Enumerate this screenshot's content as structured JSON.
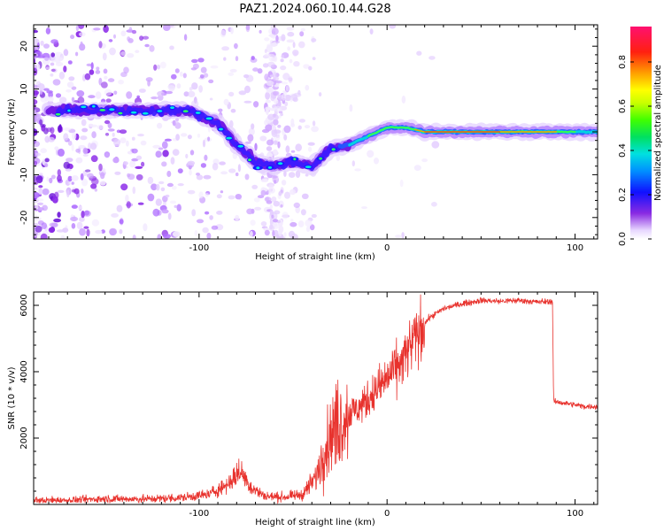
{
  "title": "PAZ1.2024.060.10.44.G28",
  "colors": {
    "snr_line": "#e8322d",
    "frame": "#000000"
  },
  "chart_data": [
    {
      "type": "heatmap",
      "xlabel": "Height of straight line (km)",
      "ylabel": "Frequency (Hz)",
      "xlim": [
        -188,
        112
      ],
      "ylim": [
        -25,
        25
      ],
      "xticks": [
        -100,
        0,
        100
      ],
      "yticks": [
        -20,
        -10,
        0,
        10,
        20
      ],
      "colorbar": {
        "label": "Normalized spectral amplitude",
        "range": [
          0,
          0.96
        ],
        "ticks": [
          0.0,
          0.2,
          0.4,
          0.6,
          0.8
        ],
        "colormap": "rainbow (white → violet → blue → cyan → green → yellow → red → pink)"
      },
      "ridge": [
        {
          "x": -175,
          "y": 5
        },
        {
          "x": -150,
          "y": 5
        },
        {
          "x": -120,
          "y": 5
        },
        {
          "x": -105,
          "y": 5
        },
        {
          "x": -90,
          "y": 2
        },
        {
          "x": -80,
          "y": -3
        },
        {
          "x": -70,
          "y": -7
        },
        {
          "x": -60,
          "y": -8
        },
        {
          "x": -50,
          "y": -7
        },
        {
          "x": -40,
          "y": -8
        },
        {
          "x": -30,
          "y": -4
        },
        {
          "x": -20,
          "y": -3
        },
        {
          "x": -10,
          "y": -1
        },
        {
          "x": 0,
          "y": 1
        },
        {
          "x": 10,
          "y": 1
        },
        {
          "x": 20,
          "y": 0
        },
        {
          "x": 50,
          "y": 0
        },
        {
          "x": 80,
          "y": 0
        },
        {
          "x": 110,
          "y": 0
        }
      ]
    },
    {
      "type": "line",
      "xlabel": "Height of straight line (km)",
      "ylabel": "SNR (10 * v/v)",
      "xlim": [
        -188,
        112
      ],
      "ylim": [
        0,
        6400
      ],
      "xticks": [
        -100,
        0,
        100
      ],
      "yticks": [
        2000,
        4000,
        6000
      ],
      "series": [
        {
          "values": [
            {
              "x": -188,
              "y": 120
            },
            {
              "x": -170,
              "y": 130
            },
            {
              "x": -150,
              "y": 170
            },
            {
              "x": -130,
              "y": 160
            },
            {
              "x": -110,
              "y": 200
            },
            {
              "x": -95,
              "y": 300
            },
            {
              "x": -85,
              "y": 600
            },
            {
              "x": -78,
              "y": 1000
            },
            {
              "x": -72,
              "y": 500
            },
            {
              "x": -65,
              "y": 250
            },
            {
              "x": -55,
              "y": 220
            },
            {
              "x": -45,
              "y": 300
            },
            {
              "x": -38,
              "y": 800
            },
            {
              "x": -33,
              "y": 1700
            },
            {
              "x": -28,
              "y": 2300
            },
            {
              "x": -22,
              "y": 2700
            },
            {
              "x": -15,
              "y": 2900
            },
            {
              "x": -8,
              "y": 3300
            },
            {
              "x": 0,
              "y": 3800
            },
            {
              "x": 8,
              "y": 4300
            },
            {
              "x": 15,
              "y": 5000
            },
            {
              "x": 22,
              "y": 5600
            },
            {
              "x": 30,
              "y": 5900
            },
            {
              "x": 40,
              "y": 6050
            },
            {
              "x": 50,
              "y": 6150
            },
            {
              "x": 60,
              "y": 6120
            },
            {
              "x": 70,
              "y": 6150
            },
            {
              "x": 80,
              "y": 6100
            },
            {
              "x": 88,
              "y": 6120
            },
            {
              "x": 88.6,
              "y": 3100
            },
            {
              "x": 95,
              "y": 3050
            },
            {
              "x": 105,
              "y": 2950
            },
            {
              "x": 112,
              "y": 2950
            }
          ]
        }
      ]
    }
  ]
}
